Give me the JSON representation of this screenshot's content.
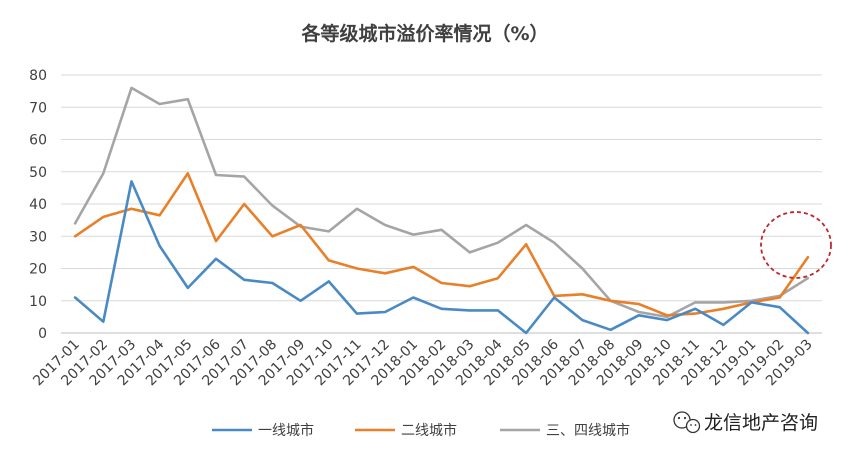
{
  "chart_data": {
    "type": "line",
    "title": "各等级城市溢价率情况（%）",
    "xlabel": "",
    "ylabel": "",
    "ylim": [
      0,
      80
    ],
    "yticks": [
      0,
      10,
      20,
      30,
      40,
      50,
      60,
      70,
      80
    ],
    "grid": "horizontal",
    "legend_position": "bottom",
    "categories": [
      "2017-01",
      "2017-02",
      "2017-03",
      "2017-04",
      "2017-05",
      "2017-06",
      "2017-07",
      "2017-08",
      "2017-09",
      "2017-10",
      "2017-11",
      "2017-12",
      "2018-01",
      "2018-02",
      "2018-03",
      "2018-04",
      "2018-05",
      "2018-06",
      "2018-07",
      "2018-08",
      "2018-09",
      "2018-10",
      "2018-11",
      "2018-12",
      "2019-01",
      "2019-02",
      "2019-03"
    ],
    "series": [
      {
        "name": "一线城市",
        "color": "#4a8ac4",
        "values": [
          11,
          3.5,
          47,
          27,
          14,
          23,
          16.5,
          15.5,
          10,
          16,
          6,
          6.5,
          11,
          7.5,
          7,
          7,
          0,
          11,
          4,
          1,
          5.5,
          4,
          7.5,
          2.5,
          9.5,
          8,
          0
        ]
      },
      {
        "name": "二线城市",
        "color": "#e8802a",
        "values": [
          30,
          36,
          38.5,
          36.5,
          49.5,
          28.5,
          40,
          30,
          33.5,
          22.5,
          20,
          18.5,
          20.5,
          15.5,
          14.5,
          17,
          27.5,
          11.5,
          12,
          10,
          9,
          5.5,
          6,
          7.5,
          9.5,
          11,
          23.5
        ]
      },
      {
        "name": "三、四线城市",
        "color": "#a5a5a5",
        "values": [
          34,
          49.5,
          76,
          71,
          72.5,
          49,
          48.5,
          39.5,
          33,
          31.5,
          38.5,
          33.5,
          30.5,
          32,
          25,
          28,
          33.5,
          28,
          20,
          10,
          6.5,
          5,
          9.5,
          9.5,
          10,
          11.5,
          17
        ]
      }
    ],
    "annotation": "red-dashed-circle around 2019-02 to 2019-03",
    "annotation_color": "#c0282d"
  },
  "watermark": {
    "icon": "wechat-icon",
    "text": "龙信地产咨询"
  }
}
